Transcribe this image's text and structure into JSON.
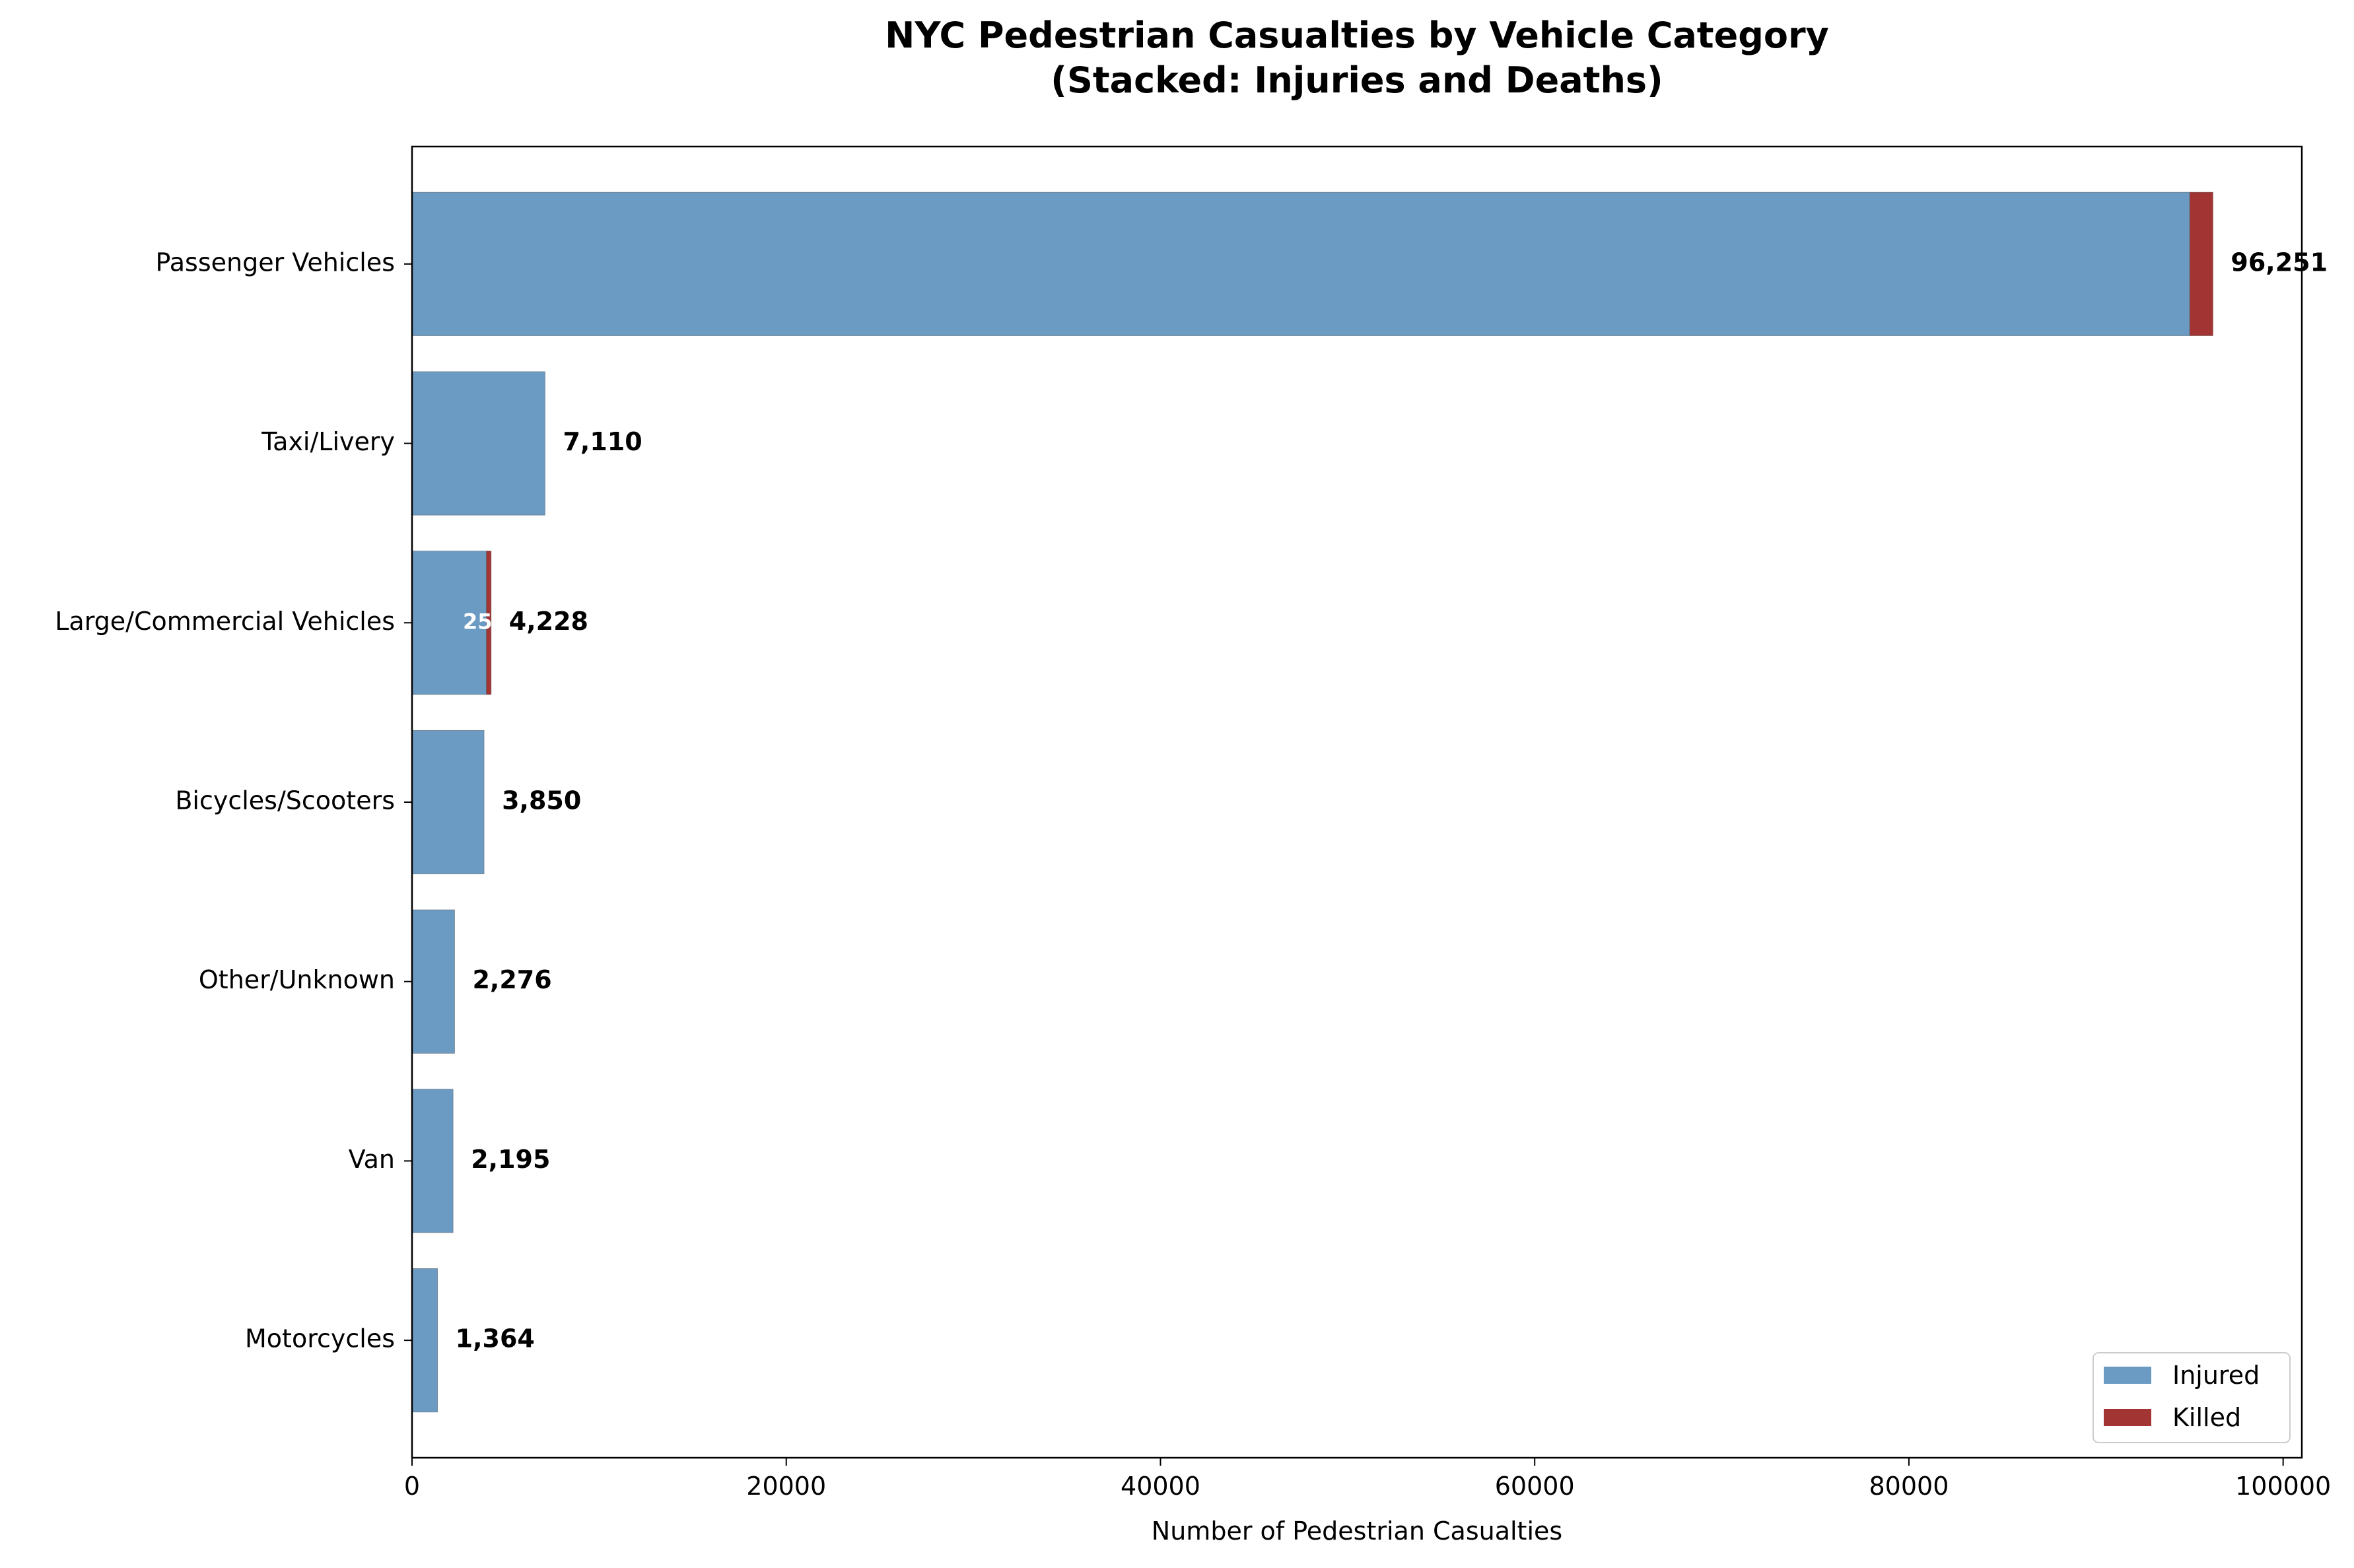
{
  "chart_data": {
    "type": "bar",
    "orientation": "horizontal",
    "stacked": true,
    "title": "NYC Pedestrian Casualties by Vehicle Category",
    "subtitle": "(Stacked: Injuries and Deaths)",
    "xlabel": "Number of Pedestrian Casualties",
    "ylabel": "",
    "xlim": [
      0,
      101000
    ],
    "x_ticks": [
      0,
      20000,
      40000,
      60000,
      80000,
      100000
    ],
    "x_tick_labels": [
      "0",
      "20000",
      "40000",
      "60000",
      "80000",
      "100000"
    ],
    "categories": [
      "Passenger Vehicles",
      "Taxi/Livery",
      "Large/Commercial Vehicles",
      "Bicycles/Scooters",
      "Other/Unknown",
      "Van",
      "Motorcycles"
    ],
    "series": [
      {
        "name": "Injured",
        "color": "#6b9bc3",
        "values": [
          95010,
          7110,
          3975,
          3850,
          2276,
          2195,
          1364
        ]
      },
      {
        "name": "Killed",
        "color": "#a23434",
        "values": [
          1241,
          0,
          253,
          0,
          0,
          0,
          0
        ]
      }
    ],
    "total_labels": [
      "96,251",
      "7,110",
      "4,228",
      "3,850",
      "2,276",
      "2,195",
      "1,364"
    ],
    "inner_labels": [
      "",
      "",
      "253",
      "",
      "",
      "",
      ""
    ],
    "legend_position": "lower right",
    "grid": false
  }
}
